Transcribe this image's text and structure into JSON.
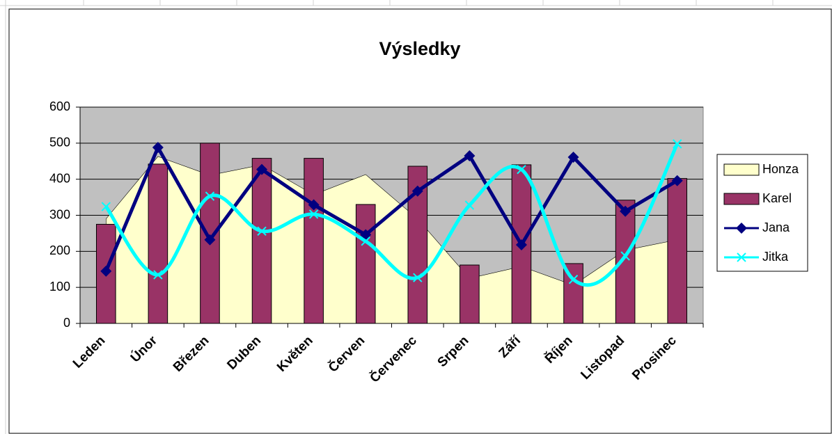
{
  "chart_data": {
    "type": "bar",
    "title": "Výsledky",
    "categories": [
      "Leden",
      "Únor",
      "Březen",
      "Duben",
      "Květen",
      "Červen",
      "Červenec",
      "Srpen",
      "Září",
      "Říjen",
      "Listopad",
      "Prosinec"
    ],
    "series": [
      {
        "name": "Honza",
        "type": "area",
        "color": "#ffffcc",
        "values": [
          290,
          463,
          411,
          440,
          357,
          413,
          290,
          125,
          158,
          106,
          203,
          232
        ]
      },
      {
        "name": "Karel",
        "type": "bar",
        "color": "#993366",
        "values": [
          275,
          442,
          500,
          458,
          458,
          330,
          436,
          162,
          440,
          166,
          342,
          402
        ]
      },
      {
        "name": "Jana",
        "type": "line",
        "color": "#000080",
        "marker": "diamond",
        "values": [
          145,
          488,
          232,
          427,
          329,
          246,
          367,
          465,
          218,
          461,
          311,
          396
        ]
      },
      {
        "name": "Jitka",
        "type": "line",
        "color": "#00ffff",
        "marker": "x",
        "smooth": true,
        "values": [
          324,
          135,
          353,
          256,
          303,
          228,
          127,
          328,
          427,
          122,
          187,
          498
        ]
      }
    ],
    "ylim": [
      0,
      600
    ],
    "yticks": [
      0,
      100,
      200,
      300,
      400,
      500,
      600
    ],
    "grid": true,
    "plot_background": "#c0c0c0",
    "legend": "right"
  }
}
